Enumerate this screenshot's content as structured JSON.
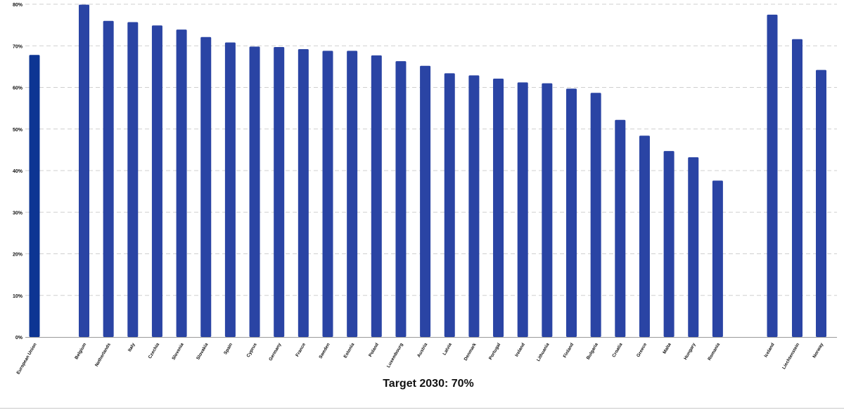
{
  "chart_data": {
    "type": "bar",
    "caption": "Target 2030: 70%",
    "categories": [
      "European Union",
      "Belgium",
      "Netherlands",
      "Italy",
      "Czechia",
      "Slovenia",
      "Slovakia",
      "Spain",
      "Cyprus",
      "Germany",
      "France",
      "Sweden",
      "Estonia",
      "Poland",
      "Luxembourg",
      "Austria",
      "Latvia",
      "Denmark",
      "Portugal",
      "Ireland",
      "Lithuania",
      "Finland",
      "Bulgaria",
      "Croatia",
      "Greece",
      "Malta",
      "Hungary",
      "Romania",
      "Iceland",
      "Liechtenstein",
      "Norway"
    ],
    "values": [
      67.8,
      79.9,
      76.0,
      75.7,
      74.9,
      73.9,
      72.1,
      70.8,
      69.8,
      69.7,
      69.2,
      68.8,
      68.8,
      67.7,
      66.3,
      65.2,
      63.4,
      62.9,
      62.1,
      61.2,
      61.0,
      59.7,
      58.7,
      52.2,
      48.4,
      44.7,
      43.2,
      37.6,
      77.5,
      71.6,
      64.2
    ],
    "ylim": [
      0,
      80
    ],
    "yticks": [
      0,
      10,
      20,
      30,
      40,
      50,
      60,
      70,
      80
    ],
    "ytick_labels": [
      "0%",
      "10%",
      "20%",
      "30%",
      "40%",
      "50%",
      "60%",
      "70%",
      "80%"
    ],
    "grid": true,
    "colors": {
      "aggregate_bar": "#0d3593",
      "country_bar": "#2a44a4",
      "grid": "#cfcfcf",
      "axis": "#9a9a9a",
      "text": "#111111"
    }
  }
}
